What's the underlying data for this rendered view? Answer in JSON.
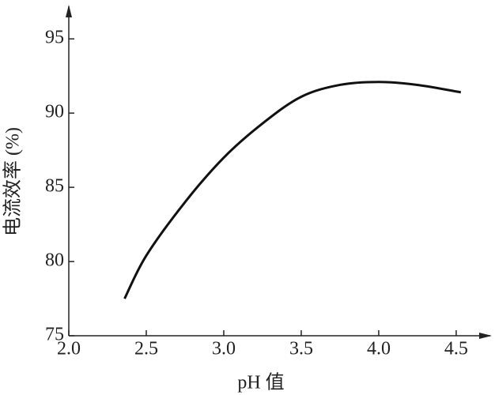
{
  "chart_data": {
    "type": "line",
    "x_label": "pH 值",
    "y_label": "电流效率 (%)",
    "x": [
      2.36,
      2.5,
      2.75,
      3.0,
      3.25,
      3.5,
      3.75,
      4.0,
      4.25,
      4.53
    ],
    "series": [
      {
        "color": "#111111",
        "values": [
          77.5,
          80.4,
          84.0,
          87.0,
          89.3,
          91.1,
          91.9,
          92.1,
          91.9,
          91.4
        ]
      }
    ],
    "xlim": [
      2.0,
      4.73
    ],
    "ylim": [
      75,
      97.3
    ],
    "xticks": [
      {
        "value": 2.0,
        "label": "2.0"
      },
      2.5,
      {
        "value": 3.0,
        "label": "3.0"
      },
      3.5,
      {
        "value": 4.0,
        "label": "4.0"
      },
      4.5
    ],
    "yticks": [
      75,
      80,
      85,
      90,
      95
    ],
    "grid": false
  }
}
